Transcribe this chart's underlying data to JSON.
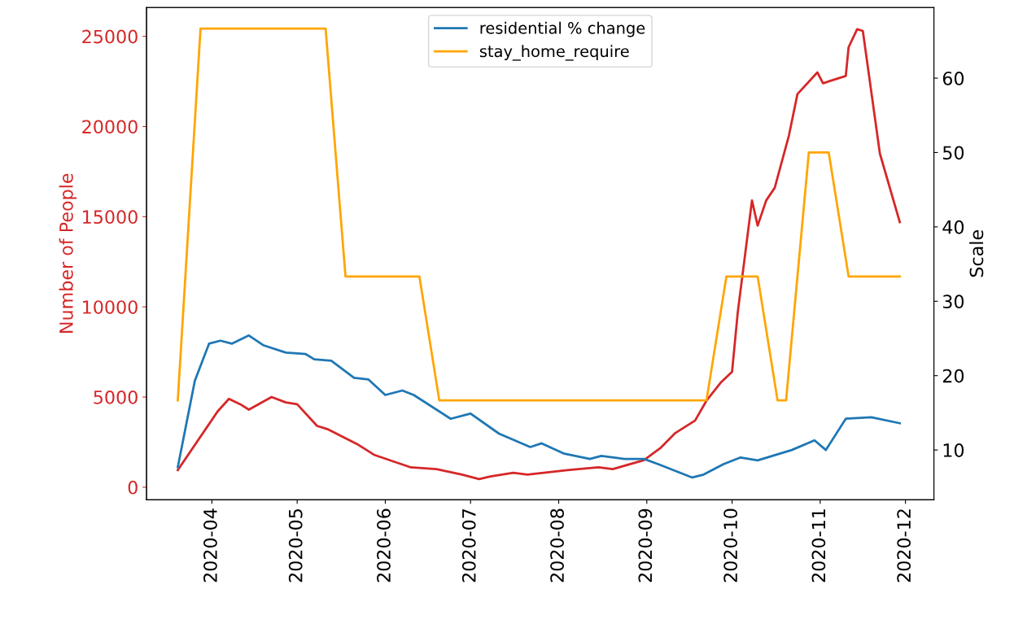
{
  "chart_data": {
    "type": "line",
    "ylabel": "Number of People",
    "y2label": "Scale",
    "series": [
      {
        "color": "#d62728",
        "x": [
          "2020-03-20",
          "2020-04-03",
          "2020-04-07",
          "2020-04-11",
          "2020-04-14",
          "2020-04-22",
          "2020-04-27",
          "2020-05-01",
          "2020-05-08",
          "2020-05-12",
          "2020-05-22",
          "2020-05-28",
          "2020-06-10",
          "2020-06-19",
          "2020-06-28",
          "2020-07-04",
          "2020-07-08",
          "2020-07-16",
          "2020-07-21",
          "2020-08-04",
          "2020-08-15",
          "2020-08-20",
          "2020-08-31",
          "2020-09-06",
          "2020-09-11",
          "2020-09-18",
          "2020-09-22",
          "2020-09-27",
          "2020-10-01",
          "2020-10-03",
          "2020-10-08",
          "2020-10-10",
          "2020-10-13",
          "2020-10-16",
          "2020-10-21",
          "2020-10-24",
          "2020-10-31",
          "2020-11-02",
          "2020-11-10",
          "2020-11-11",
          "2020-11-14",
          "2020-11-16",
          "2020-11-22",
          "2020-11-29"
        ],
        "values": [
          950,
          4200,
          4900,
          4600,
          4300,
          5000,
          4700,
          4600,
          3400,
          3200,
          2400,
          1800,
          1100,
          1000,
          700,
          450,
          600,
          800,
          700,
          950,
          1100,
          1000,
          1500,
          2200,
          3000,
          3700,
          4800,
          5800,
          6400,
          9700,
          15900,
          14500,
          15900,
          16600,
          19500,
          21800,
          23000,
          22400,
          22800,
          24400,
          25400,
          25300,
          18500,
          14700
        ]
      },
      {
        "name": "residential % change",
        "color": "#1f77b4",
        "axis": "y2",
        "x": [
          "2020-03-20",
          "2020-03-26",
          "2020-03-31",
          "2020-04-04",
          "2020-04-08",
          "2020-04-14",
          "2020-04-19",
          "2020-04-27",
          "2020-05-04",
          "2020-05-07",
          "2020-05-13",
          "2020-05-21",
          "2020-05-26",
          "2020-06-01",
          "2020-06-07",
          "2020-06-11",
          "2020-06-24",
          "2020-07-01",
          "2020-07-11",
          "2020-07-22",
          "2020-07-26",
          "2020-08-03",
          "2020-08-12",
          "2020-08-16",
          "2020-08-24",
          "2020-08-31",
          "2020-09-05",
          "2020-09-17",
          "2020-09-21",
          "2020-09-28",
          "2020-10-04",
          "2020-10-10",
          "2020-10-22",
          "2020-10-30",
          "2020-11-03",
          "2020-11-10",
          "2020-11-19",
          "2020-11-29"
        ],
        "values": [
          7.7,
          19.3,
          24.3,
          24.7,
          24.3,
          25.4,
          24.1,
          23.1,
          22.9,
          22.2,
          22.0,
          19.7,
          19.5,
          17.4,
          18.0,
          17.4,
          14.2,
          14.9,
          12.2,
          10.4,
          10.9,
          9.5,
          8.8,
          9.2,
          8.8,
          8.8,
          8.1,
          6.3,
          6.7,
          8.1,
          9.0,
          8.6,
          10.0,
          11.3,
          10.0,
          14.2,
          14.4,
          13.6
        ]
      },
      {
        "name": "stay_home_require",
        "color": "#ffa500",
        "axis": "y2",
        "x": [
          "2020-03-20",
          "2020-03-28",
          "2020-05-11",
          "2020-05-18",
          "2020-06-13",
          "2020-06-20",
          "2020-09-22",
          "2020-09-29",
          "2020-10-10",
          "2020-10-17",
          "2020-10-20",
          "2020-10-28",
          "2020-11-04",
          "2020-11-11",
          "2020-11-29"
        ],
        "values": [
          16.67,
          66.67,
          66.67,
          33.33,
          33.33,
          16.67,
          16.67,
          33.33,
          33.33,
          16.67,
          16.67,
          50,
          50,
          33.33,
          33.33
        ]
      }
    ],
    "xlim": [
      "2020-03-09",
      "2020-12-11"
    ],
    "xticks": [
      {
        "value": "2020-04-01",
        "label": "2020-04"
      },
      {
        "value": "2020-05-01",
        "label": "2020-05"
      },
      {
        "value": "2020-06-01",
        "label": "2020-06"
      },
      {
        "value": "2020-07-01",
        "label": "2020-07"
      },
      {
        "value": "2020-08-01",
        "label": "2020-08"
      },
      {
        "value": "2020-09-01",
        "label": "2020-09"
      },
      {
        "value": "2020-10-01",
        "label": "2020-10"
      },
      {
        "value": "2020-11-01",
        "label": "2020-11"
      },
      {
        "value": "2020-12-01",
        "label": "2020-12"
      }
    ],
    "ylim": [
      -700,
      26600
    ],
    "yticks": [
      0,
      5000,
      10000,
      15000,
      20000,
      25000
    ],
    "y2lim": [
      3.3,
      69.5
    ],
    "y2ticks": [
      10,
      20,
      30,
      40,
      50,
      60
    ],
    "legend": "top",
    "grid": false
  }
}
